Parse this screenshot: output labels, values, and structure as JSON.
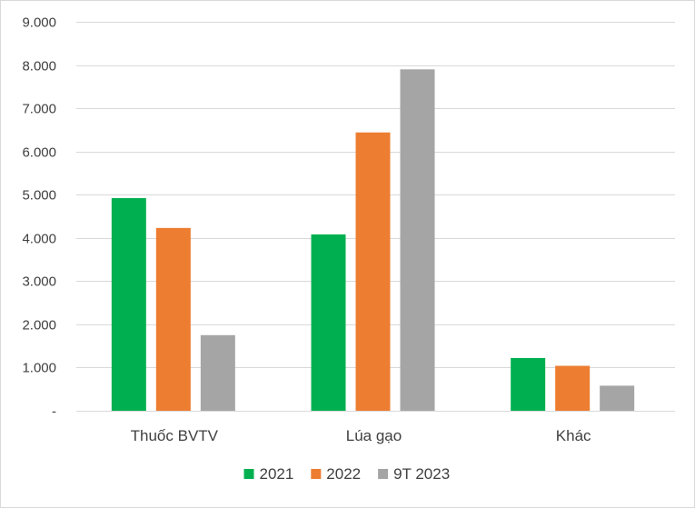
{
  "chart_data": {
    "type": "bar",
    "categories": [
      "Thuốc BVTV",
      "Lúa gạo",
      "Khác"
    ],
    "series": [
      {
        "name": "2021",
        "color": "#00b050",
        "values": [
          4920,
          4080,
          1220
        ]
      },
      {
        "name": "2022",
        "color": "#ed7d31",
        "values": [
          4230,
          6440,
          1040
        ]
      },
      {
        "name": "9T 2023",
        "color": "#a5a5a5",
        "values": [
          1750,
          7900,
          580
        ]
      }
    ],
    "ylim": [
      0,
      9000
    ],
    "yticks": [
      0,
      1000,
      2000,
      3000,
      4000,
      5000,
      6000,
      7000,
      8000,
      9000
    ],
    "ytick_labels": [
      "-",
      "1.000",
      "2.000",
      "3.000",
      "4.000",
      "5.000",
      "6.000",
      "7.000",
      "8.000",
      "9.000"
    ],
    "grid": true,
    "legend_position": "bottom"
  }
}
